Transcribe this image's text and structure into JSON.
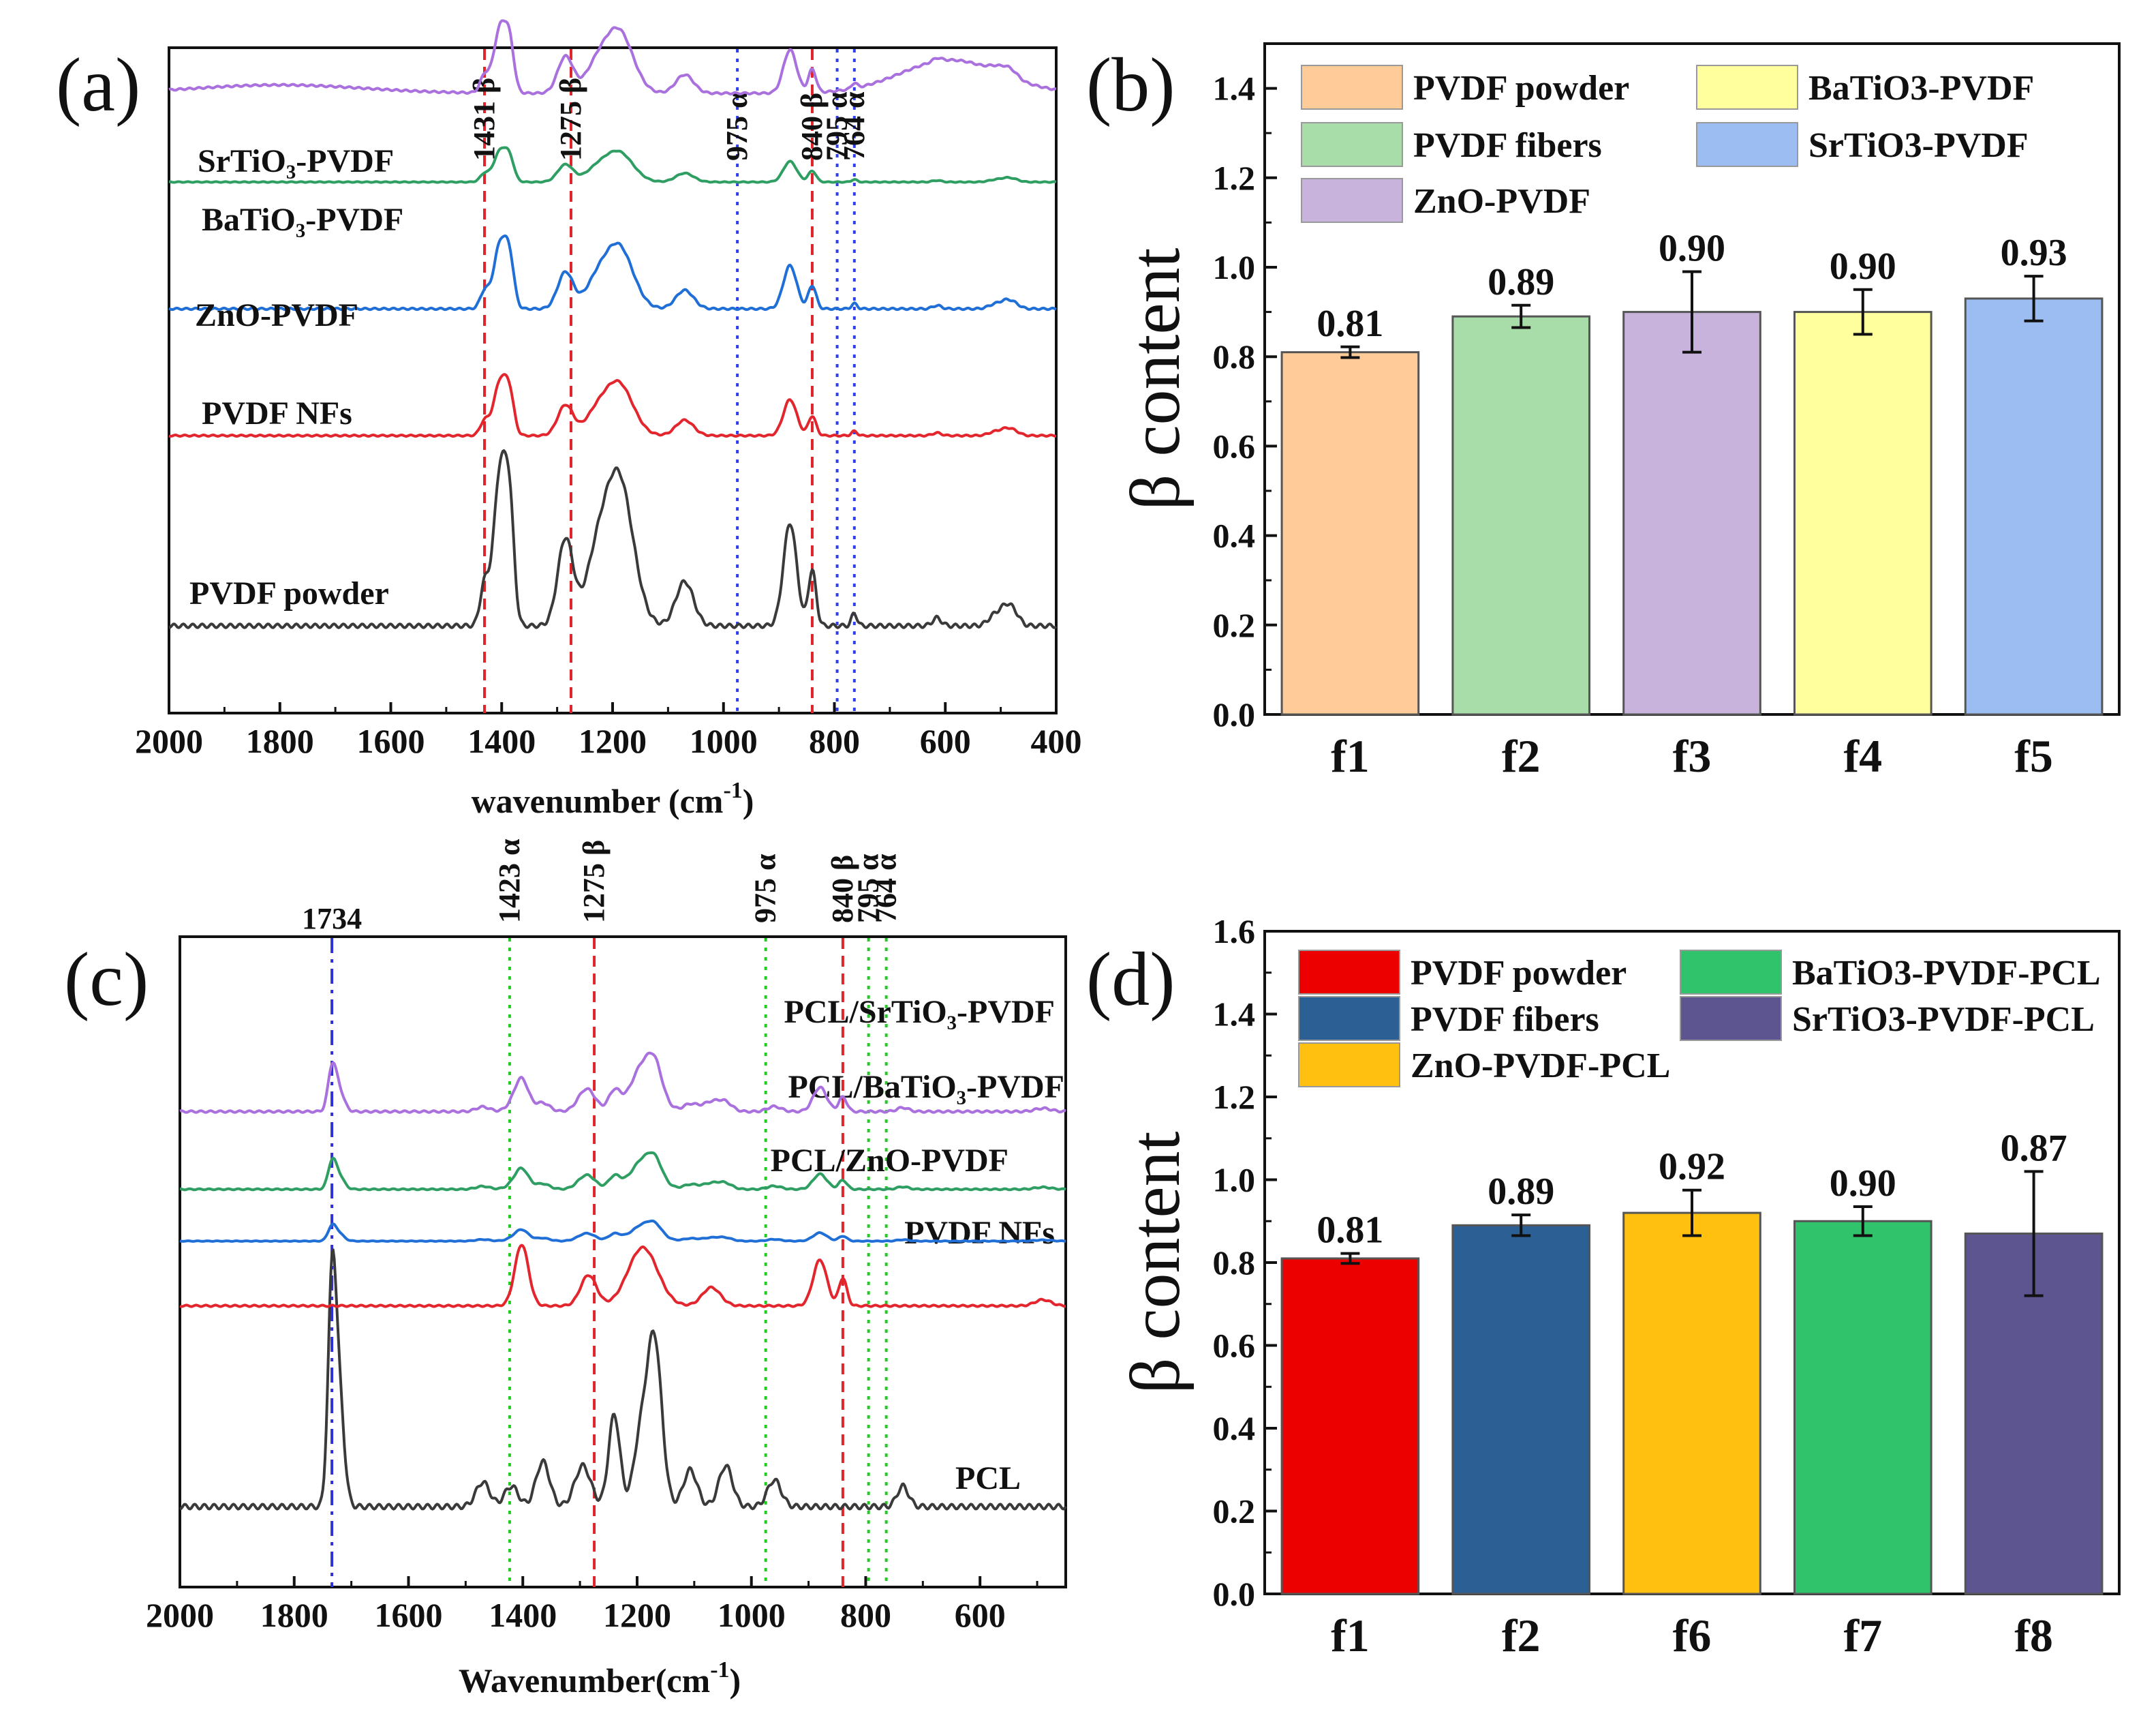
{
  "chart_data": [
    {
      "panel": "(a)",
      "type": "line",
      "xlabel": "wavenumber (cm",
      "xlabel_sup": "-1",
      "xlabel_end": ")",
      "xlim": [
        2000,
        400
      ],
      "xticks": [
        "2000",
        "1800",
        "1600",
        "1400",
        "1200",
        "1000",
        "800",
        "600",
        "400"
      ],
      "x_tick_values": [
        2000,
        1800,
        1600,
        1400,
        1200,
        1000,
        800,
        600,
        400
      ],
      "annotations": [
        {
          "label": "1431 β",
          "x": 1431,
          "color": "#e0242b",
          "style": "dashed"
        },
        {
          "label": "1275 β",
          "x": 1275,
          "color": "#e0242b",
          "style": "dashed"
        },
        {
          "label": "975 α",
          "x": 975,
          "color": "#2f3ff0",
          "style": "dotted"
        },
        {
          "label": "840 β",
          "x": 840,
          "color": "#e0242b",
          "style": "dashed"
        },
        {
          "label": "795 α",
          "x": 795,
          "color": "#2f3ff0",
          "style": "dotted"
        },
        {
          "label": "764 α",
          "x": 764,
          "color": "#2f3ff0",
          "style": "dotted"
        }
      ],
      "series": [
        {
          "name": "PVDF powder",
          "color": "#3a3a3a",
          "offset": 0.0,
          "scale": 1.0,
          "broad": 0.0
        },
        {
          "name": "PVDF NFs",
          "color": "#e3262d",
          "offset": 1.5,
          "scale": 0.35,
          "broad": 0.0
        },
        {
          "name": "ZnO-PVDF",
          "color": "#1f6fd6",
          "offset": 2.5,
          "scale": 0.42,
          "broad": 0.0
        },
        {
          "name": "BaTiO3-PVDF",
          "display": "BaTiO₃-PVDF",
          "color": "#2e9e62",
          "offset": 3.5,
          "scale": 0.2,
          "broad": 0.0
        },
        {
          "name": "SrTiO3-PVDF",
          "display": "SrTiO₃-PVDF",
          "color": "#a970de",
          "offset": 4.2,
          "scale": 0.42,
          "broad": 0.5
        }
      ],
      "peaks": [
        {
          "x": 1431,
          "h": 0.25,
          "w": 8
        },
        {
          "x": 1402,
          "h": 1.0,
          "w": 12
        },
        {
          "x": 1385,
          "h": 0.55,
          "w": 8
        },
        {
          "x": 1285,
          "h": 0.55,
          "w": 14
        },
        {
          "x": 1232,
          "h": 0.3,
          "w": 20
        },
        {
          "x": 1190,
          "h": 0.95,
          "w": 26
        },
        {
          "x": 1070,
          "h": 0.28,
          "w": 16
        },
        {
          "x": 880,
          "h": 0.65,
          "w": 12
        },
        {
          "x": 840,
          "h": 0.35,
          "w": 7
        },
        {
          "x": 764,
          "h": 0.08,
          "w": 5
        },
        {
          "x": 615,
          "h": 0.05,
          "w": 8
        },
        {
          "x": 510,
          "h": 0.07,
          "w": 12
        },
        {
          "x": 490,
          "h": 0.1,
          "w": 10
        },
        {
          "x": 475,
          "h": 0.07,
          "w": 10
        }
      ]
    },
    {
      "panel": "(b)",
      "type": "bar",
      "ylabel": "β content",
      "ylim": [
        0,
        1.5
      ],
      "yticks": [
        "0.0",
        "0.2",
        "0.4",
        "0.6",
        "0.8",
        "1.0",
        "1.2",
        "1.4"
      ],
      "ytick_values": [
        0,
        0.2,
        0.4,
        0.6,
        0.8,
        1.0,
        1.2,
        1.4
      ],
      "categories": [
        "f1",
        "f2",
        "f3",
        "f4",
        "f5"
      ],
      "values": [
        0.81,
        0.89,
        0.9,
        0.9,
        0.93
      ],
      "value_labels": [
        "0.81",
        "0.89",
        "0.90",
        "0.90",
        "0.93"
      ],
      "errors": [
        0.012,
        0.025,
        0.09,
        0.05,
        0.05
      ],
      "colors": [
        "#ffcc99",
        "#a8dca8",
        "#c7b3dc",
        "#ffff9e",
        "#9bbdf2"
      ],
      "legend": [
        {
          "label": "PVDF powder",
          "color": "#ffcc99"
        },
        {
          "label": "BaTiO3-PVDF",
          "color": "#ffff9e"
        },
        {
          "label": "PVDF fibers",
          "color": "#a8dca8"
        },
        {
          "label": "SrTiO3-PVDF",
          "color": "#9bbdf2"
        },
        {
          "label": "ZnO-PVDF",
          "color": "#c7b3dc"
        }
      ]
    },
    {
      "panel": "(c)",
      "type": "line",
      "xlabel": "Wavenumber(cm",
      "xlabel_sup": "-1",
      "xlabel_end": ")",
      "xlim": [
        2000,
        450
      ],
      "xticks": [
        "2000",
        "1800",
        "1600",
        "1400",
        "1200",
        "1000",
        "800",
        "600"
      ],
      "x_tick_values": [
        2000,
        1800,
        1600,
        1400,
        1200,
        1000,
        800,
        600
      ],
      "top_label": "1734",
      "annotations": [
        {
          "label": "1734",
          "x": 1734,
          "color": "#3030d8",
          "style": "dashdot"
        },
        {
          "label": "1423 α",
          "x": 1423,
          "color": "#22cc22",
          "style": "dotted"
        },
        {
          "label": "1275 β",
          "x": 1275,
          "color": "#e0242b",
          "style": "dashed"
        },
        {
          "label": "975 α",
          "x": 975,
          "color": "#22cc22",
          "style": "dotted"
        },
        {
          "label": "840 β",
          "x": 840,
          "color": "#e0242b",
          "style": "dashed"
        },
        {
          "label": "795 α",
          "x": 795,
          "color": "#22cc22",
          "style": "dotted"
        },
        {
          "label": "764 α",
          "x": 764,
          "color": "#22cc22",
          "style": "dotted"
        }
      ],
      "series": [
        {
          "name": "PCL",
          "color": "#3a3a3a",
          "offset": 0.0,
          "kind": "pcl",
          "scale": 1.0
        },
        {
          "name": "PVDF NFs",
          "color": "#e3262d",
          "offset": 1.55,
          "kind": "pvdf",
          "scale": 0.3
        },
        {
          "name": "PCL/ZnO-PVDF",
          "display": "PCL/ZnO-PVDF",
          "color": "#1f6fd6",
          "offset": 2.05,
          "kind": "mix",
          "scale": 0.12
        },
        {
          "name": "PCL/BaTiO3-PVDF",
          "display": "PCL/BaTiO₃-PVDF",
          "color": "#2e9e62",
          "offset": 2.45,
          "kind": "mix",
          "scale": 0.22
        },
        {
          "name": "PCL/SrTiO3-PVDF",
          "display": "PCL/SrTiO₃-PVDF",
          "color": "#a970de",
          "offset": 3.05,
          "kind": "mix",
          "scale": 0.35
        }
      ],
      "pcl_peaks": [
        {
          "x": 1734,
          "h": 1.0,
          "w": 7
        },
        {
          "x": 1722,
          "h": 0.55,
          "w": 9
        },
        {
          "x": 1470,
          "h": 0.12,
          "w": 12
        },
        {
          "x": 1420,
          "h": 0.1,
          "w": 12
        },
        {
          "x": 1365,
          "h": 0.22,
          "w": 12
        },
        {
          "x": 1295,
          "h": 0.2,
          "w": 14
        },
        {
          "x": 1240,
          "h": 0.45,
          "w": 10
        },
        {
          "x": 1195,
          "h": 0.3,
          "w": 12
        },
        {
          "x": 1170,
          "h": 0.82,
          "w": 13
        },
        {
          "x": 1107,
          "h": 0.18,
          "w": 12
        },
        {
          "x": 1045,
          "h": 0.2,
          "w": 12
        },
        {
          "x": 960,
          "h": 0.13,
          "w": 12
        },
        {
          "x": 735,
          "h": 0.1,
          "w": 10
        }
      ],
      "pvdf_peaks": [
        {
          "x": 1402,
          "h": 1.0,
          "w": 12
        },
        {
          "x": 1285,
          "h": 0.5,
          "w": 14
        },
        {
          "x": 1190,
          "h": 0.95,
          "w": 26
        },
        {
          "x": 1070,
          "h": 0.3,
          "w": 16
        },
        {
          "x": 880,
          "h": 0.75,
          "w": 12
        },
        {
          "x": 840,
          "h": 0.45,
          "w": 7
        },
        {
          "x": 490,
          "h": 0.1,
          "w": 14
        }
      ]
    },
    {
      "panel": "(d)",
      "type": "bar",
      "ylabel": "β content",
      "ylim": [
        0,
        1.6
      ],
      "yticks": [
        "0.0",
        "0.2",
        "0.4",
        "0.6",
        "0.8",
        "1.0",
        "1.2",
        "1.4",
        "1.6"
      ],
      "ytick_values": [
        0,
        0.2,
        0.4,
        0.6,
        0.8,
        1.0,
        1.2,
        1.4,
        1.6
      ],
      "categories": [
        "f1",
        "f2",
        "f6",
        "f7",
        "f8"
      ],
      "values": [
        0.81,
        0.89,
        0.92,
        0.9,
        0.87
      ],
      "value_labels": [
        "0.81",
        "0.89",
        "0.92",
        "0.90",
        "0.87"
      ],
      "errors": [
        0.012,
        0.025,
        0.055,
        0.035,
        0.15
      ],
      "colors": [
        "#ec0000",
        "#2c5f93",
        "#ffc010",
        "#30c36b",
        "#5c5590"
      ],
      "legend": [
        {
          "label": "PVDF powder",
          "color": "#ec0000"
        },
        {
          "label": "BaTiO3-PVDF-PCL",
          "color": "#30c36b"
        },
        {
          "label": "PVDF fibers",
          "color": "#2c5f93"
        },
        {
          "label": "SrTiO3-PVDF-PCL",
          "color": "#5c5590"
        },
        {
          "label": "ZnO-PVDF-PCL",
          "color": "#ffc010"
        }
      ]
    }
  ]
}
